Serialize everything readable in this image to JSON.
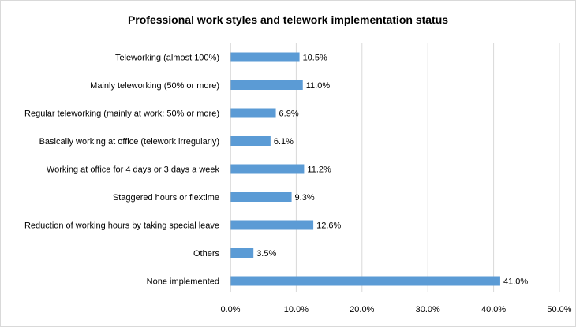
{
  "chart_data": {
    "type": "bar",
    "orientation": "horizontal",
    "title": "Professional work styles and telework implementation status",
    "categories": [
      "Teleworking (almost 100%)",
      "Mainly teleworking (50% or more)",
      "Regular teleworking (mainly at work: 50% or more)",
      "Basically working at office (telework irregularly)",
      "Working at office for 4 days or 3 days a week",
      "Staggered hours or flextime",
      "Reduction of working hours by taking special leave",
      "Others",
      "None implemented"
    ],
    "values": [
      10.5,
      11.0,
      6.9,
      6.1,
      11.2,
      9.3,
      12.6,
      3.5,
      41.0
    ],
    "value_labels": [
      "10.5%",
      "11.0%",
      "6.9%",
      "6.1%",
      "11.2%",
      "9.3%",
      "12.6%",
      "3.5%",
      "41.0%"
    ],
    "xlim": [
      0,
      50
    ],
    "xticks": [
      0,
      10,
      20,
      30,
      40,
      50
    ],
    "xtick_labels": [
      "0.0%",
      "10.0%",
      "20.0%",
      "30.0%",
      "40.0%",
      "50.0%"
    ],
    "grid": "vertical",
    "legend": "none",
    "bar_color": "#5b9bd5",
    "grid_color": "#d9d9d9"
  }
}
